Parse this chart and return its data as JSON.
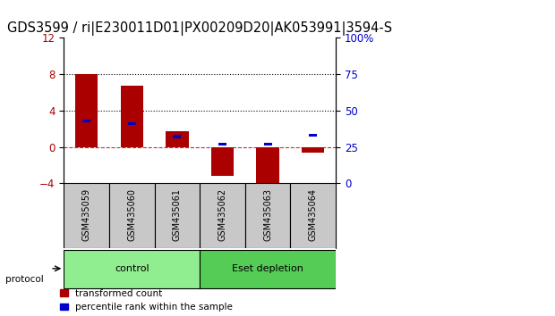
{
  "title": "GDS3599 / ri|E230011D01|PX00209D20|AK053991|3594-S",
  "samples": [
    "GSM435059",
    "GSM435060",
    "GSM435061",
    "GSM435062",
    "GSM435063",
    "GSM435064"
  ],
  "red_values": [
    8.0,
    6.7,
    1.7,
    -3.2,
    -4.5,
    -0.6
  ],
  "blue_pct": [
    43,
    41,
    32,
    27,
    27,
    33
  ],
  "ylim_left": [
    -4,
    12
  ],
  "ylim_right": [
    0,
    100
  ],
  "yticks_left": [
    -4,
    0,
    4,
    8,
    12
  ],
  "yticks_right": [
    0,
    25,
    50,
    75,
    100
  ],
  "ytick_labels_right": [
    "0",
    "25",
    "50",
    "75",
    "100%"
  ],
  "hlines_dotted": [
    4.0,
    8.0
  ],
  "hline_dashed": 0.0,
  "red_bar_width": 0.5,
  "blue_bar_width": 0.18,
  "red_color": "#AA0000",
  "blue_color": "#0000CC",
  "group_labels": [
    "control",
    "Eset depletion"
  ],
  "group_ranges": [
    [
      0,
      2
    ],
    [
      3,
      5
    ]
  ],
  "group_color_light": "#90EE90",
  "group_color_dark": "#55CC55",
  "protocol_label": "protocol",
  "legend_red": "transformed count",
  "legend_blue": "percentile rank within the sample",
  "bg_color": "#FFFFFF",
  "plot_bg": "#FFFFFF",
  "sample_box_color": "#C8C8C8",
  "title_fontsize": 10.5,
  "tick_fontsize": 8.5,
  "label_fontsize": 8
}
